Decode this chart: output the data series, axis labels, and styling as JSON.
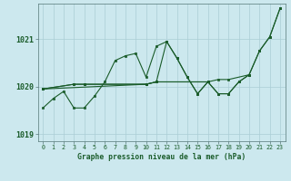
{
  "title": "Graphe pression niveau de la mer (hPa)",
  "background_color": "#cce8ee",
  "grid_color": "#aacdd5",
  "line_color": "#1a5c2a",
  "ylim": [
    1018.85,
    1021.75
  ],
  "xlim": [
    -0.5,
    23.5
  ],
  "yticks": [
    1019,
    1020,
    1021
  ],
  "xticks": [
    0,
    1,
    2,
    3,
    4,
    5,
    6,
    7,
    8,
    9,
    10,
    11,
    12,
    13,
    14,
    15,
    16,
    17,
    18,
    19,
    20,
    21,
    22,
    23
  ],
  "series": [
    {
      "x": [
        0,
        1,
        2,
        3,
        4,
        5,
        6,
        7,
        8,
        9,
        10,
        11,
        12,
        13,
        14,
        15,
        16,
        17,
        18,
        19,
        20,
        21,
        22,
        23
      ],
      "y": [
        1019.55,
        1019.75,
        1019.9,
        1019.55,
        1019.55,
        1019.8,
        1020.1,
        1020.55,
        1020.65,
        1020.7,
        1020.2,
        1020.85,
        1020.95,
        1020.6,
        1020.2,
        1019.85,
        1020.1,
        1019.85,
        1019.85,
        1020.1,
        1020.25,
        1020.75,
        1021.05,
        1021.65
      ]
    },
    {
      "x": [
        0,
        3,
        4,
        10,
        11,
        16,
        17,
        18,
        20
      ],
      "y": [
        1019.95,
        1020.05,
        1020.05,
        1020.05,
        1020.1,
        1020.1,
        1020.15,
        1020.15,
        1020.25
      ]
    },
    {
      "x": [
        0,
        3,
        4,
        10,
        11,
        16
      ],
      "y": [
        1019.95,
        1020.05,
        1020.05,
        1020.05,
        1020.1,
        1020.1
      ]
    },
    {
      "x": [
        0,
        10,
        11,
        12,
        13,
        14,
        15,
        16,
        17,
        18,
        19,
        20,
        21,
        22,
        23
      ],
      "y": [
        1019.95,
        1020.05,
        1020.1,
        1020.95,
        1020.6,
        1020.2,
        1019.85,
        1020.1,
        1019.85,
        1019.85,
        1020.1,
        1020.25,
        1020.75,
        1021.05,
        1021.65
      ]
    }
  ]
}
